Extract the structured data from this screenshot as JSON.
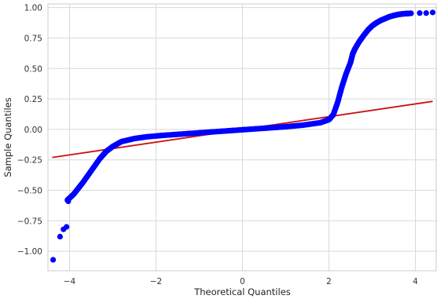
{
  "chart_data": {
    "type": "scatter",
    "title": "",
    "xlabel": "Theoretical Quantiles",
    "ylabel": "Sample Quantiles",
    "xlim": [
      -4.5,
      4.5
    ],
    "ylim": [
      -1.16,
      1.03
    ],
    "xticks": [
      -4,
      -2,
      0,
      2,
      4
    ],
    "xtick_labels": [
      "−4",
      "−2",
      "0",
      "2",
      "4"
    ],
    "yticks": [
      -1.0,
      -0.75,
      -0.5,
      -0.25,
      0.0,
      0.25,
      0.5,
      0.75,
      1.0
    ],
    "ytick_labels": [
      "−1.00",
      "−0.75",
      "−0.50",
      "−0.25",
      "0.00",
      "0.25",
      "0.50",
      "0.75",
      "1.00"
    ],
    "grid": true,
    "colors": {
      "points": "#0000ff",
      "reference_line": "#cc1111"
    },
    "reference_line": {
      "x": [
        -4.4,
        4.4
      ],
      "y": [
        -0.23,
        0.23
      ]
    },
    "quantile_curve": {
      "x": [
        -4.05,
        -3.9,
        -3.7,
        -3.5,
        -3.3,
        -3.15,
        -3.0,
        -2.8,
        -2.5,
        -2.2,
        -1.8,
        -1.4,
        -1.0,
        -0.6,
        -0.2,
        0.2,
        0.6,
        1.0,
        1.4,
        1.8,
        2.0,
        2.1,
        2.2,
        2.3,
        2.4,
        2.5,
        2.55,
        2.6,
        2.7,
        2.8,
        2.9,
        3.0,
        3.1,
        3.2,
        3.3,
        3.4,
        3.5,
        3.6,
        3.7,
        3.8,
        3.9
      ],
      "y": [
        -0.58,
        -0.53,
        -0.44,
        -0.34,
        -0.24,
        -0.18,
        -0.14,
        -0.1,
        -0.075,
        -0.06,
        -0.048,
        -0.038,
        -0.028,
        -0.018,
        -0.008,
        0.002,
        0.012,
        0.022,
        0.035,
        0.055,
        0.08,
        0.12,
        0.22,
        0.35,
        0.46,
        0.55,
        0.62,
        0.66,
        0.72,
        0.77,
        0.815,
        0.85,
        0.875,
        0.895,
        0.91,
        0.925,
        0.935,
        0.943,
        0.948,
        0.951,
        0.953
      ]
    },
    "outliers": {
      "x": [
        -4.38,
        -4.22,
        -4.14,
        -4.07,
        -4.03,
        4.1,
        4.25,
        4.4
      ],
      "y": [
        -1.07,
        -0.88,
        -0.82,
        -0.8,
        -0.59,
        0.955,
        0.955,
        0.96
      ]
    }
  }
}
